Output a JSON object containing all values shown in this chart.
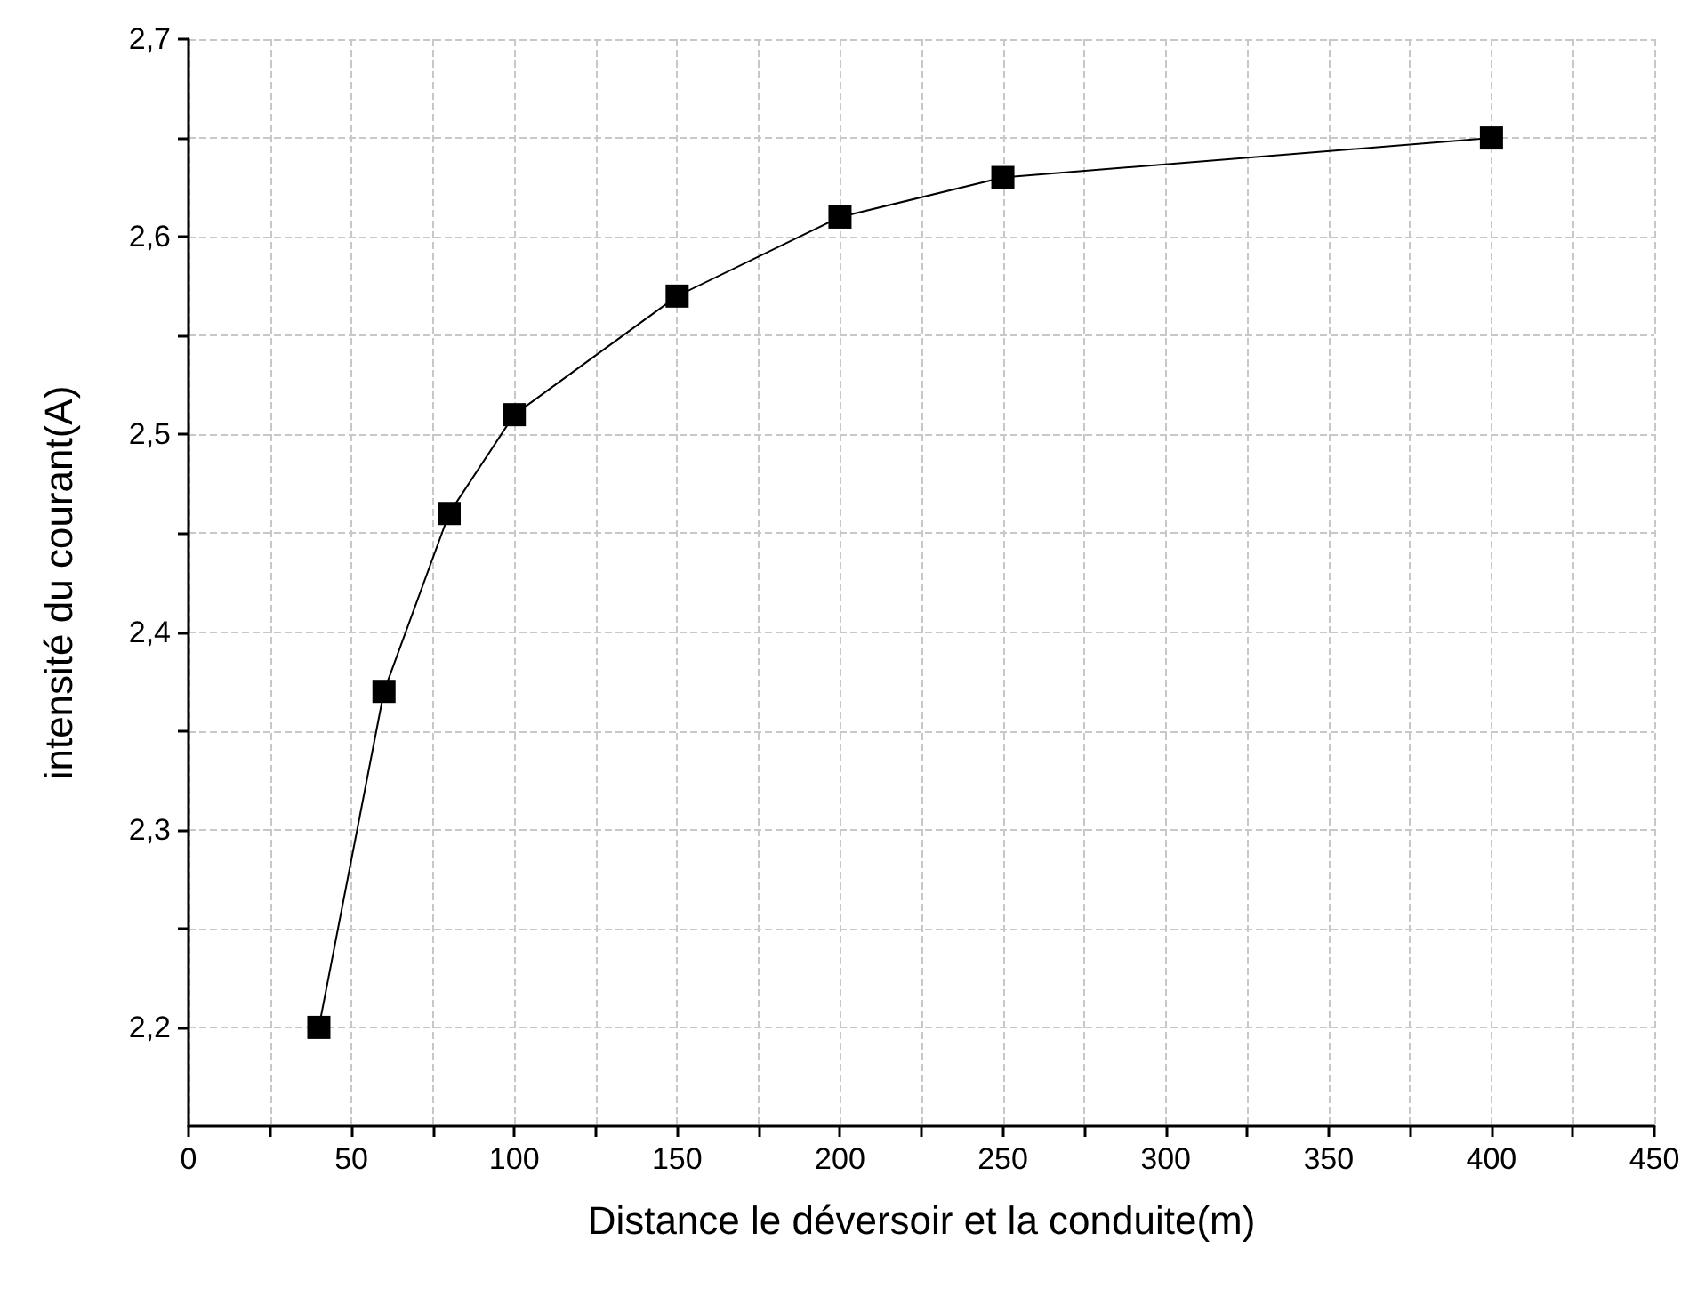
{
  "chart_data": {
    "type": "line",
    "xlabel": "Distance le déversoir et la conduite(m)",
    "ylabel": "intensité du courant(A)",
    "x": [
      40,
      60,
      80,
      100,
      150,
      200,
      250,
      400
    ],
    "series": [
      {
        "color": "#000000",
        "values": [
          2.2,
          2.37,
          2.46,
          2.51,
          2.57,
          2.61,
          2.63,
          2.65
        ]
      }
    ],
    "xlim": [
      0,
      450
    ],
    "xticks": [
      0,
      {
        "value": 25,
        "label": null
      },
      50,
      {
        "value": 75,
        "label": null
      },
      100,
      {
        "value": 125,
        "label": null
      },
      150,
      {
        "value": 175,
        "label": null
      },
      200,
      {
        "value": 225,
        "label": null
      },
      250,
      {
        "value": 275,
        "label": null
      },
      300,
      {
        "value": 325,
        "label": null
      },
      350,
      {
        "value": 375,
        "label": null
      },
      400,
      {
        "value": 425,
        "label": null
      },
      450
    ],
    "ylim": [
      2.15,
      2.7
    ],
    "yticks": [
      {
        "value": 2.2,
        "label": "2,2"
      },
      {
        "value": 2.25,
        "label": null
      },
      {
        "value": 2.3,
        "label": "2,3"
      },
      {
        "value": 2.35,
        "label": null
      },
      {
        "value": 2.4,
        "label": "2,4"
      },
      {
        "value": 2.45,
        "label": null
      },
      {
        "value": 2.5,
        "label": "2,5"
      },
      {
        "value": 2.55,
        "label": null
      },
      {
        "value": 2.6,
        "label": "2,6"
      },
      {
        "value": 2.65,
        "label": null
      },
      {
        "value": 2.7,
        "label": "2,7"
      }
    ],
    "grid": true,
    "marker": "square",
    "line_style": "solid"
  }
}
